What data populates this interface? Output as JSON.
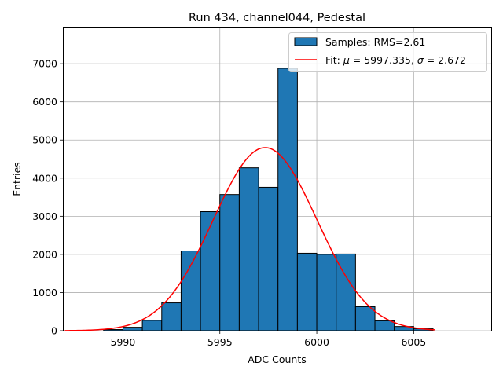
{
  "chart_data": {
    "type": "bar",
    "title": "Run 434, channel044, Pedestal",
    "xlabel": "ADC Counts",
    "ylabel": "Entries",
    "xlim": [
      5986.9,
      6009.0
    ],
    "ylim": [
      0,
      7950
    ],
    "xticks": [
      5990,
      5995,
      6000,
      6005
    ],
    "yticks": [
      0,
      1000,
      2000,
      3000,
      4000,
      5000,
      6000,
      7000
    ],
    "grid": true,
    "legend_position": "top-right",
    "histogram": {
      "name": "Samples: RMS=2.61",
      "bin_width": 1,
      "bin_edges_start": 5989,
      "values": [
        30,
        90,
        270,
        730,
        2090,
        3120,
        3570,
        4270,
        3760,
        6880,
        2030,
        2000,
        2010,
        630,
        260,
        110,
        50
      ],
      "color": "#1f77b4",
      "edgecolor": "#000000"
    },
    "fit": {
      "name_prefix": "Fit: ",
      "name_mu": "μ",
      "name_mid": " = 5997.335, ",
      "name_sigma": "σ",
      "name_suffix": " = 2.672",
      "mu": 5997.335,
      "sigma": 2.672,
      "amplitude": 4800,
      "x_range": [
        5987.0,
        6006.1
      ],
      "color": "#ff0000"
    }
  }
}
